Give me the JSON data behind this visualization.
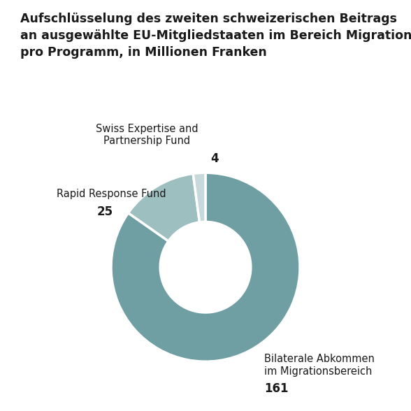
{
  "title_lines": [
    "Aufschlüsselung des zweiten schweizerischen Beitrags",
    "an ausgewählte EU-Mitgliedstaaten im Bereich Migration,",
    "pro Programm, in Millionen Franken"
  ],
  "slices": [
    {
      "label": "Bilaterale Abkommen\nim Migrationsbereich",
      "value": 161,
      "color": "#6f9fa3",
      "value_label": "161"
    },
    {
      "label": "Rapid Response Fund",
      "value": 25,
      "color": "#9dbfc0",
      "value_label": "25"
    },
    {
      "label": "Swiss Expertise and\nPartnership Fund",
      "value": 4,
      "color": "#c8d9db",
      "value_label": "4"
    }
  ],
  "bg_color": "#ffffff",
  "title_fontsize": 12.5,
  "label_fontsize": 10.5,
  "value_fontsize": 12,
  "wedge_edge_color": "#ffffff",
  "wedge_linewidth": 2.5,
  "donut_ratio": 0.52
}
